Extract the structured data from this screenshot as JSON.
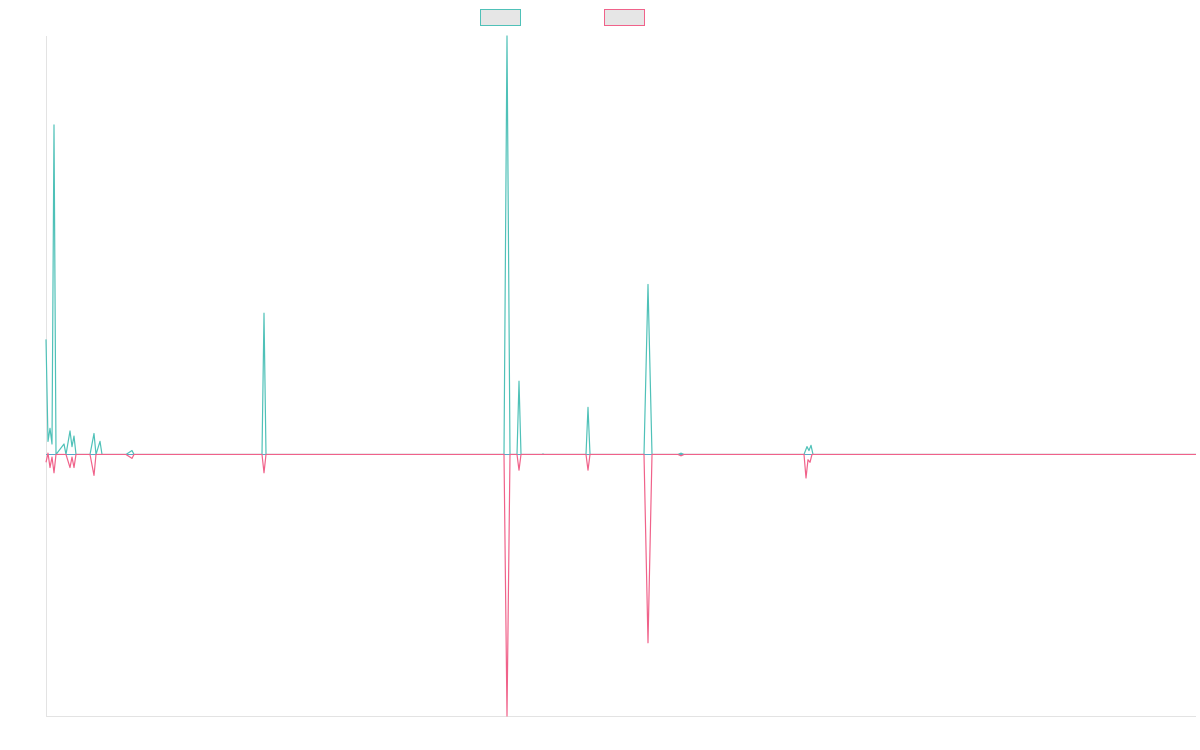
{
  "chart_data": {
    "type": "line",
    "title": "",
    "xlabel": "",
    "ylabel": "",
    "xlim": [
      0,
      1150
    ],
    "ylim": [
      -1.0,
      1.6
    ],
    "grid": false,
    "legend": {
      "placement": "top-center",
      "entries": [
        "",
        ""
      ]
    },
    "colors": {
      "series1": "#4fc1b8",
      "series2": "#f0628a",
      "swatch_fill": "#e6e6e6",
      "axis": "#e3e3e3",
      "zero_line": "#5aa8c8"
    },
    "series": [
      {
        "values": [
          [
            0,
            0.44
          ],
          [
            2,
            0.05
          ],
          [
            4,
            0.1
          ],
          [
            6,
            0.04
          ],
          [
            8,
            1.26
          ],
          [
            10,
            0
          ],
          [
            14,
            0.02
          ],
          [
            18,
            0.04
          ],
          [
            20,
            0
          ],
          [
            24,
            0.09
          ],
          [
            26,
            0.03
          ],
          [
            28,
            0.07
          ],
          [
            30,
            0
          ],
          [
            34,
            0
          ],
          [
            38,
            0
          ],
          [
            44,
            0
          ],
          [
            48,
            0.08
          ],
          [
            50,
            0
          ],
          [
            54,
            0.05
          ],
          [
            56,
            0
          ],
          [
            80,
            0
          ],
          [
            86,
            0.015
          ],
          [
            88,
            0
          ],
          [
            96,
            0
          ],
          [
            216,
            0
          ],
          [
            218,
            0.54
          ],
          [
            220,
            0
          ],
          [
            458,
            0
          ],
          [
            461,
            1.6
          ],
          [
            464,
            0
          ],
          [
            471,
            0
          ],
          [
            473,
            0.28
          ],
          [
            475,
            0
          ],
          [
            496,
            0
          ],
          [
            497,
            0.002
          ],
          [
            498,
            0
          ],
          [
            540,
            0
          ],
          [
            542,
            0.18
          ],
          [
            544,
            0
          ],
          [
            598,
            0
          ],
          [
            602,
            0.65
          ],
          [
            606,
            0
          ],
          [
            632,
            0
          ],
          [
            635,
            0.005
          ],
          [
            638,
            0
          ],
          [
            758,
            0
          ],
          [
            761,
            0.03
          ],
          [
            763,
            0.015
          ],
          [
            765,
            0.035
          ],
          [
            767,
            0
          ],
          [
            1150,
            0
          ]
        ]
      },
      {
        "values": [
          [
            0,
            -0.03
          ],
          [
            2,
            0.005
          ],
          [
            4,
            -0.05
          ],
          [
            6,
            -0.01
          ],
          [
            8,
            -0.07
          ],
          [
            10,
            0
          ],
          [
            14,
            0
          ],
          [
            20,
            0
          ],
          [
            24,
            -0.05
          ],
          [
            26,
            -0.01
          ],
          [
            28,
            -0.05
          ],
          [
            30,
            0
          ],
          [
            34,
            0
          ],
          [
            38,
            0
          ],
          [
            44,
            0
          ],
          [
            48,
            -0.08
          ],
          [
            50,
            0
          ],
          [
            54,
            0
          ],
          [
            56,
            0
          ],
          [
            80,
            0
          ],
          [
            86,
            -0.015
          ],
          [
            88,
            0
          ],
          [
            96,
            0
          ],
          [
            216,
            0
          ],
          [
            218,
            -0.07
          ],
          [
            220,
            0
          ],
          [
            458,
            0
          ],
          [
            461,
            -1.0
          ],
          [
            464,
            0
          ],
          [
            471,
            0
          ],
          [
            473,
            -0.06
          ],
          [
            475,
            0
          ],
          [
            496,
            0
          ],
          [
            540,
            0
          ],
          [
            542,
            -0.06
          ],
          [
            544,
            0
          ],
          [
            598,
            0
          ],
          [
            602,
            -0.72
          ],
          [
            606,
            0
          ],
          [
            632,
            0
          ],
          [
            635,
            -0.005
          ],
          [
            638,
            0
          ],
          [
            758,
            0
          ],
          [
            760,
            -0.09
          ],
          [
            762,
            -0.02
          ],
          [
            764,
            -0.03
          ],
          [
            766,
            0
          ],
          [
            1150,
            0
          ]
        ]
      }
    ]
  }
}
